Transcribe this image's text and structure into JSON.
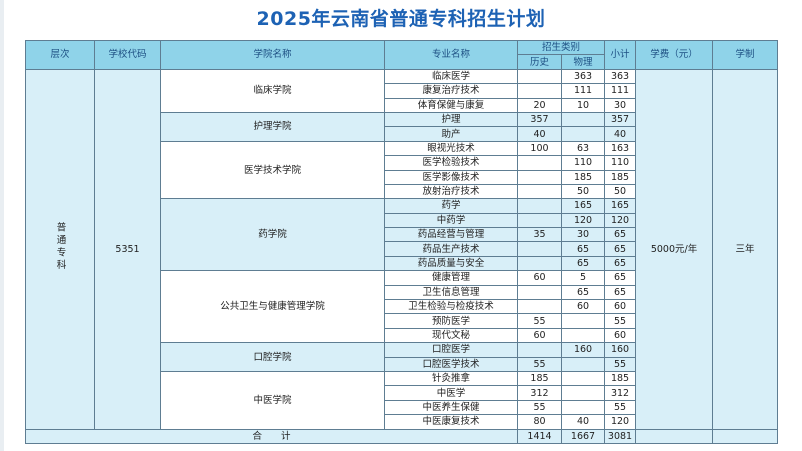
{
  "title": "2025年云南省普通专科招生计划",
  "headers": {
    "level": "层次",
    "school_code": "学校代码",
    "college": "学院名称",
    "major": "专业名称",
    "category": "招生类别",
    "history": "历史",
    "physics": "物理",
    "subtotal": "小计",
    "tuition": "学费（元）",
    "duration": "学制"
  },
  "level_value": "普通专科",
  "school_code_value": "5351",
  "tuition_value": "5000元/年",
  "duration_value": "三年",
  "colleges": [
    {
      "name": "临床学院",
      "majors": [
        {
          "name": "临床医学",
          "history": "",
          "physics": "363",
          "subtotal": "363"
        },
        {
          "name": "康复治疗技术",
          "history": "",
          "physics": "111",
          "subtotal": "111"
        },
        {
          "name": "体育保健与康复",
          "history": "20",
          "physics": "10",
          "subtotal": "30"
        }
      ]
    },
    {
      "name": "护理学院",
      "majors": [
        {
          "name": "护理",
          "history": "357",
          "physics": "",
          "subtotal": "357"
        },
        {
          "name": "助产",
          "history": "40",
          "physics": "",
          "subtotal": "40"
        }
      ]
    },
    {
      "name": "医学技术学院",
      "majors": [
        {
          "name": "眼视光技术",
          "history": "100",
          "physics": "63",
          "subtotal": "163"
        },
        {
          "name": "医学检验技术",
          "history": "",
          "physics": "110",
          "subtotal": "110"
        },
        {
          "name": "医学影像技术",
          "history": "",
          "physics": "185",
          "subtotal": "185"
        },
        {
          "name": "放射治疗技术",
          "history": "",
          "physics": "50",
          "subtotal": "50"
        }
      ]
    },
    {
      "name": "药学院",
      "majors": [
        {
          "name": "药学",
          "history": "",
          "physics": "165",
          "subtotal": "165"
        },
        {
          "name": "中药学",
          "history": "",
          "physics": "120",
          "subtotal": "120"
        },
        {
          "name": "药品经营与管理",
          "history": "35",
          "physics": "30",
          "subtotal": "65"
        },
        {
          "name": "药品生产技术",
          "history": "",
          "physics": "65",
          "subtotal": "65"
        },
        {
          "name": "药品质量与安全",
          "history": "",
          "physics": "65",
          "subtotal": "65"
        }
      ]
    },
    {
      "name": "公共卫生与健康管理学院",
      "majors": [
        {
          "name": "健康管理",
          "history": "60",
          "physics": "5",
          "subtotal": "65"
        },
        {
          "name": "卫生信息管理",
          "history": "",
          "physics": "65",
          "subtotal": "65"
        },
        {
          "name": "卫生检验与检疫技术",
          "history": "",
          "physics": "60",
          "subtotal": "60"
        },
        {
          "name": "预防医学",
          "history": "55",
          "physics": "",
          "subtotal": "55"
        },
        {
          "name": "现代文秘",
          "history": "60",
          "physics": "",
          "subtotal": "60"
        }
      ]
    },
    {
      "name": "口腔学院",
      "majors": [
        {
          "name": "口腔医学",
          "history": "",
          "physics": "160",
          "subtotal": "160"
        },
        {
          "name": "口腔医学技术",
          "history": "55",
          "physics": "",
          "subtotal": "55"
        }
      ]
    },
    {
      "name": "中医学院",
      "majors": [
        {
          "name": "针灸推拿",
          "history": "185",
          "physics": "",
          "subtotal": "185"
        },
        {
          "name": "中医学",
          "history": "312",
          "physics": "",
          "subtotal": "312"
        },
        {
          "name": "中医养生保健",
          "history": "55",
          "physics": "",
          "subtotal": "55"
        },
        {
          "name": "中医康复技术",
          "history": "80",
          "physics": "40",
          "subtotal": "120"
        }
      ]
    }
  ],
  "total": {
    "label": "合　　计",
    "history": "1414",
    "physics": "1667",
    "subtotal": "3081"
  },
  "colors": {
    "header_bg": "#8fd3e9",
    "title": "#1d62b4",
    "row_band": "#d8eff8",
    "border": "#5e7d92"
  }
}
